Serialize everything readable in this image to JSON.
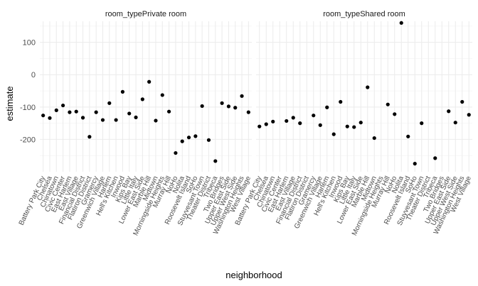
{
  "chart_data": {
    "type": "scatter",
    "title": "",
    "xlabel": "neighborhood",
    "ylabel": "estimate",
    "ylim": [
      -300,
      165
    ],
    "yticks": [
      100,
      0,
      -100,
      -200
    ],
    "grid": true,
    "legend": "none",
    "point_color": "#000000",
    "categories": [
      "Battery Park City",
      "Chelsea",
      "Chinatown",
      "Civic Center",
      "East Harlem",
      "East Village",
      "Financial District",
      "Flatiron District",
      "Gramercy",
      "Greenwich Village",
      "Harlem",
      "Hell's Kitchen",
      "Inwood",
      "Kips Bay",
      "Little Italy",
      "Lower East Side",
      "Marble Hill",
      "Midtown",
      "Morningside Heights",
      "Murray Hill",
      "NoHo",
      "Nolita",
      "Roosevelt Island",
      "SoHo",
      "Stuyvesant Town",
      "Theater District",
      "Tribeca",
      "Two Bridges",
      "Upper East Side",
      "Upper West Side",
      "Washington Heights",
      "West Village"
    ],
    "facets": [
      {
        "label": "room_typePrivate room",
        "values": [
          -126,
          -134,
          -110,
          -95,
          -116,
          -114,
          -133,
          -192,
          -116,
          -140,
          -88,
          -140,
          -53,
          -120,
          -132,
          -76,
          -22,
          -142,
          -63,
          -114,
          -242,
          -206,
          -194,
          -190,
          -97,
          -202,
          -267,
          -88,
          -98,
          -102,
          -66,
          -116
        ]
      },
      {
        "label": "room_typeShared room",
        "values": [
          -160,
          -153,
          -145,
          null,
          -143,
          -133,
          -150,
          null,
          -126,
          -156,
          -101,
          -184,
          -84,
          -160,
          -162,
          -148,
          -39,
          -196,
          null,
          -92,
          -122,
          160,
          -191,
          -275,
          -150,
          null,
          -258,
          null,
          -113,
          -148,
          -84,
          -124
        ]
      }
    ]
  }
}
